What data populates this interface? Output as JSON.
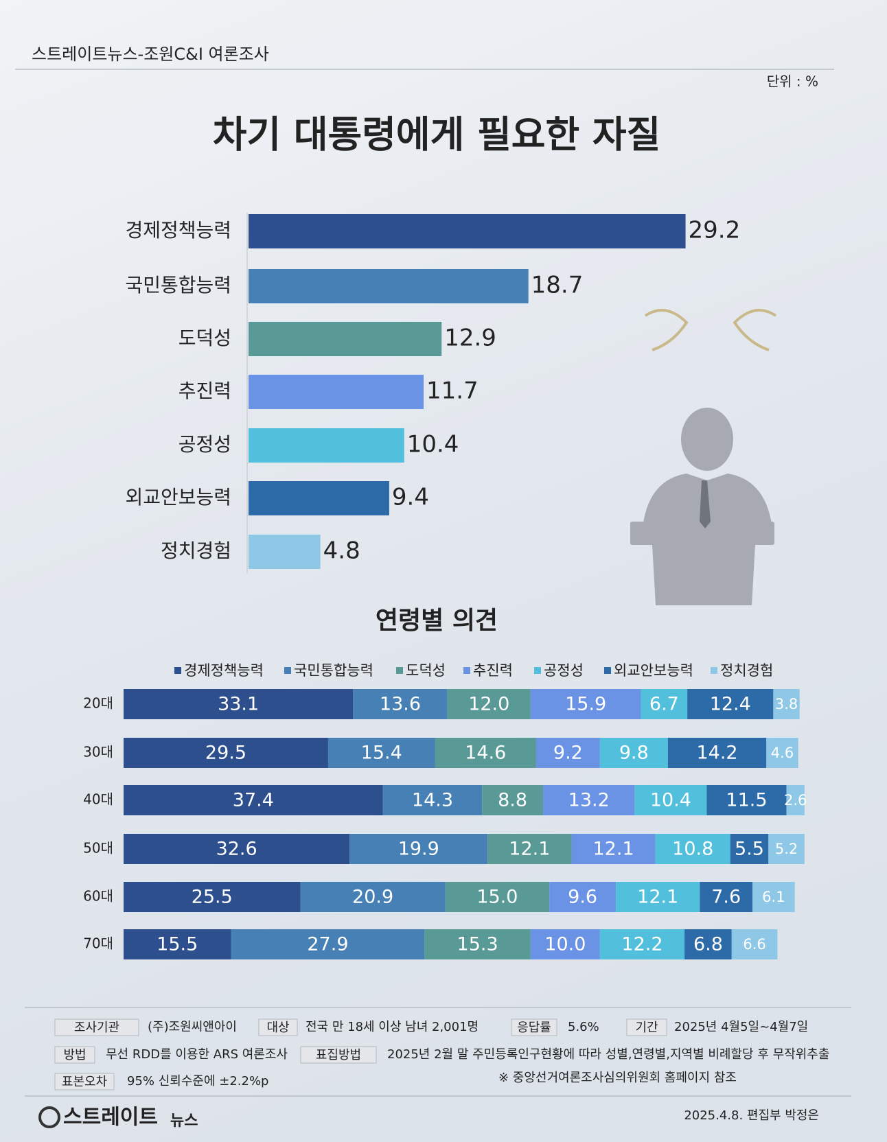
{
  "header": {
    "source": "스트레이트뉴스-조원C&I 여론조사",
    "unit": "단위 : %"
  },
  "chart_data": [
    {
      "type": "bar",
      "orientation": "horizontal",
      "title": "차기 대통령에게 필요한 자질",
      "categories": [
        "경제정책능력",
        "국민통합능력",
        "도덕성",
        "추진력",
        "공정성",
        "외교안보능력",
        "정치경험"
      ],
      "values": [
        29.2,
        18.7,
        12.9,
        11.7,
        10.4,
        9.4,
        4.8
      ],
      "colors": [
        "#2d4f8e",
        "#4680b4",
        "#5a9a96",
        "#6a93e6",
        "#52c0dc",
        "#2c6aa8",
        "#8ec8e6"
      ]
    },
    {
      "type": "stacked_bar",
      "orientation": "horizontal",
      "title": "연령별 의견",
      "categories": [
        "20대",
        "30대",
        "40대",
        "50대",
        "60대",
        "70대"
      ],
      "series": [
        {
          "name": "경제정책능력",
          "color": "#2d4f8e",
          "values": [
            33.1,
            29.5,
            37.4,
            32.6,
            25.5,
            15.5
          ]
        },
        {
          "name": "국민통합능력",
          "color": "#4680b4",
          "values": [
            13.6,
            15.4,
            14.3,
            19.9,
            20.9,
            27.9
          ]
        },
        {
          "name": "도덕성",
          "color": "#5a9a96",
          "values": [
            12.0,
            14.6,
            8.8,
            12.1,
            15.0,
            15.3
          ],
          "value_labels": [
            "12.0",
            "14.6",
            "8.8",
            "12.1",
            "15.0",
            "15.3"
          ]
        },
        {
          "name": "추진력",
          "color": "#6a93e6",
          "values": [
            15.9,
            9.2,
            13.2,
            12.1,
            9.6,
            10.0
          ],
          "value_labels": [
            "15.9",
            "9.2",
            "13.2",
            "12.1",
            "9.6",
            "10.0"
          ]
        },
        {
          "name": "공정성",
          "color": "#52c0dc",
          "values": [
            6.7,
            9.8,
            10.4,
            10.8,
            12.1,
            12.2
          ]
        },
        {
          "name": "외교안보능력",
          "color": "#2c6aa8",
          "values": [
            12.4,
            14.2,
            11.5,
            5.5,
            7.6,
            6.8
          ]
        },
        {
          "name": "정치경험",
          "color": "#8ec8e6",
          "values": [
            3.8,
            4.6,
            2.6,
            5.2,
            6.1,
            6.6
          ]
        }
      ]
    }
  ],
  "footer": {
    "info": [
      {
        "label": "조사기관",
        "value": "(주)조원씨앤아이"
      },
      {
        "label": "대상",
        "value": "전국 만 18세 이상 남녀 2,001명"
      },
      {
        "label": "응답률",
        "value": "5.6%"
      },
      {
        "label": "기간",
        "value": "2025년 4월5일~4월7일"
      },
      {
        "label": "방법",
        "value": "무선 RDD를 이용한 ARS 여론조사"
      },
      {
        "label": "표집방법",
        "value": "2025년 2월 말 주민등록인구현황에 따라 성별,연령별,지역별 비례할당 후 무작위추출"
      },
      {
        "label": "표본오차",
        "value": "95% 신뢰수준에 ±2.2%p"
      }
    ],
    "note": "※ 중앙선거여론조사심의위원회 홈페이지 참조",
    "brand": "스트레이트",
    "brand_sub": "뉴스",
    "credit": "2025.4.8. 편집부 박정은"
  }
}
